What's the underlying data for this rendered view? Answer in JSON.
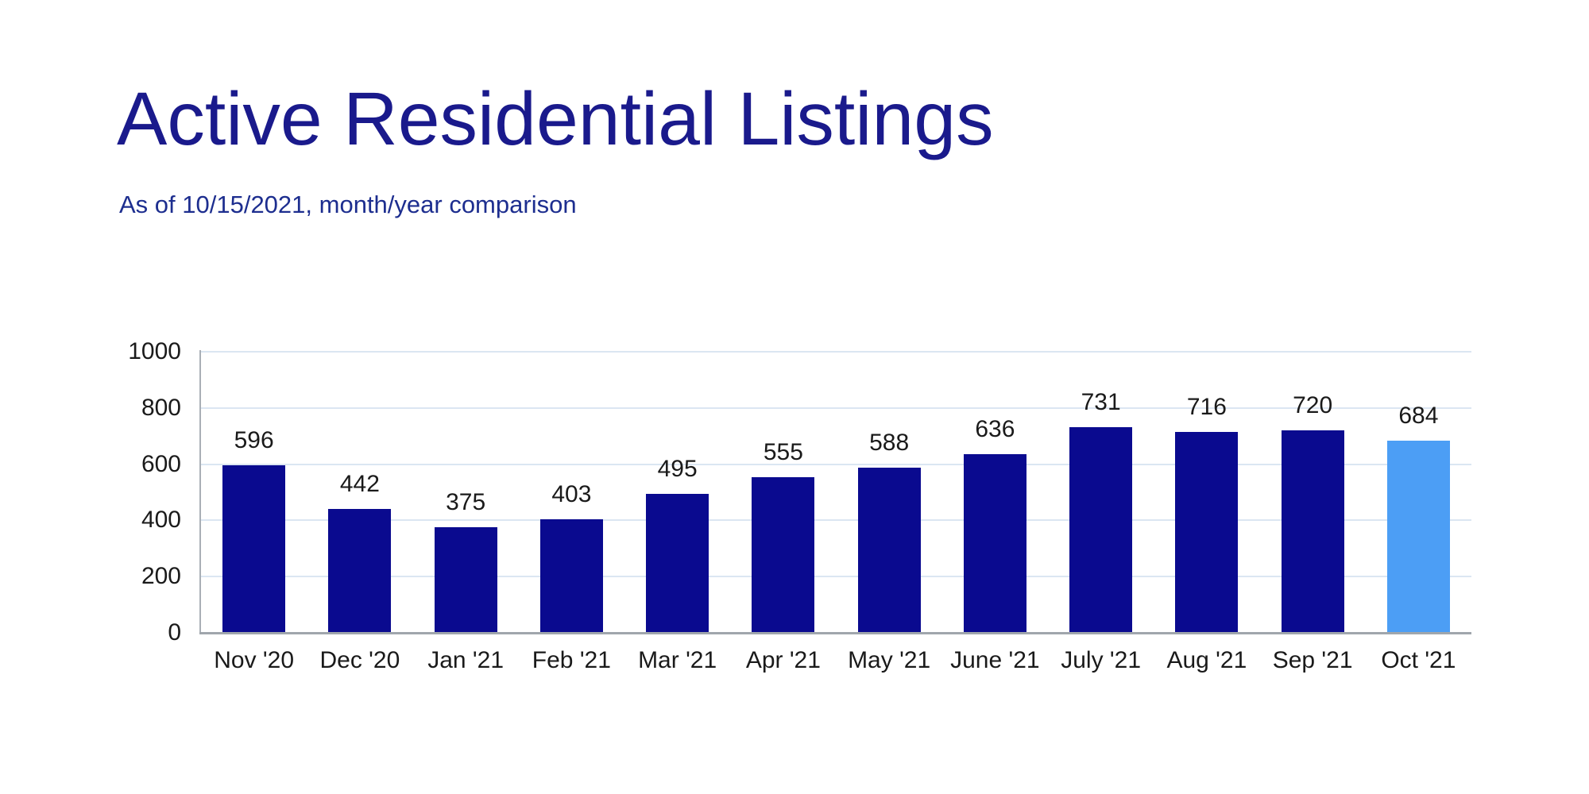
{
  "header": {
    "title": "Active Residential Listings",
    "subtitle": "As of 10/15/2021, month/year comparison"
  },
  "chart_data": {
    "type": "bar",
    "title": "Active Residential Listings",
    "subtitle": "As of 10/15/2021, month/year comparison",
    "categories": [
      "Nov '20",
      "Dec '20",
      "Jan '21",
      "Feb '21",
      "Mar '21",
      "Apr '21",
      "May '21",
      "June '21",
      "July '21",
      "Aug '21",
      "Sep '21",
      "Oct '21"
    ],
    "values": [
      596,
      442,
      375,
      403,
      495,
      555,
      588,
      636,
      731,
      716,
      720,
      684
    ],
    "highlight_index": 11,
    "value_labels": true,
    "xlabel": "",
    "ylabel": "",
    "ylim": [
      0,
      1000
    ],
    "yticks": [
      0,
      200,
      400,
      600,
      800,
      1000
    ],
    "grid": true,
    "legend": "none",
    "colors": {
      "bar": "#0a0a8f",
      "highlight_bar": "#4c9ef5",
      "gridline": "#dbe6f2",
      "axis": "#a5abb2",
      "title": "#1a1a8c",
      "subtitle": "#1d2e8f",
      "label_text": "#1a1a1a"
    }
  }
}
